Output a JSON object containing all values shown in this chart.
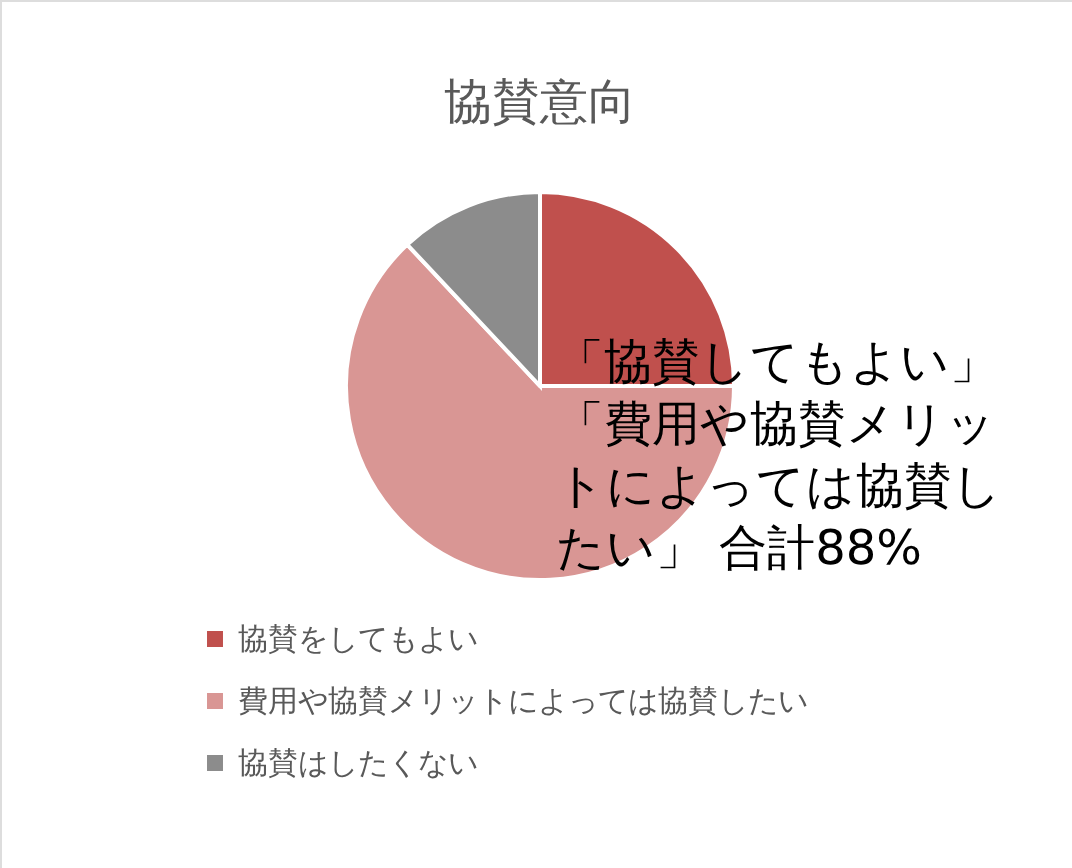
{
  "chart_data": {
    "type": "pie",
    "title": "協賛意向",
    "categories": [
      "協賛をしてもよい",
      "費用や協賛メリットによっては協賛したい",
      "協賛はしたくない"
    ],
    "values": [
      25,
      63,
      12
    ],
    "colors": [
      "#c0504d",
      "#d99694",
      "#8c8c8c"
    ],
    "legend": "bottom left",
    "annotations": [
      "「協賛してもよい」",
      "「費用や協賛メリットによっては協賛したい」 合計88%"
    ]
  }
}
